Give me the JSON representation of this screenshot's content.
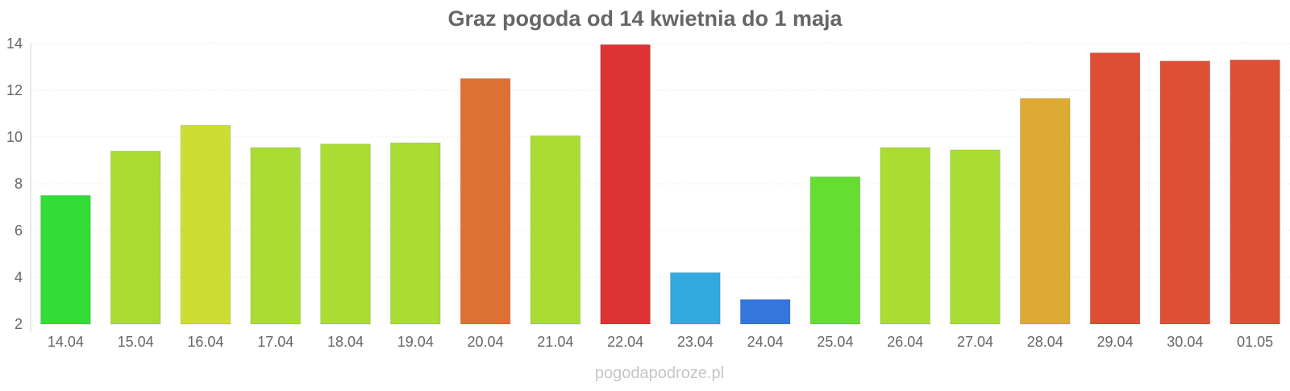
{
  "chart_data": {
    "type": "bar",
    "title": "Graz pogoda od 14 kwietnia do 1 maja",
    "xlabel": "",
    "ylabel": "",
    "categories": [
      "14.04",
      "15.04",
      "16.04",
      "17.04",
      "18.04",
      "19.04",
      "20.04",
      "21.04",
      "22.04",
      "23.04",
      "24.04",
      "25.04",
      "26.04",
      "27.04",
      "28.04",
      "29.04",
      "30.04",
      "01.05"
    ],
    "values": [
      7.5,
      9.4,
      10.5,
      9.55,
      9.7,
      9.75,
      12.5,
      10.05,
      13.95,
      4.2,
      3.05,
      8.3,
      9.55,
      9.45,
      11.65,
      13.6,
      13.25,
      13.3
    ],
    "colors": [
      "#33dd38",
      "#a9db33",
      "#cddd33",
      "#a9dd33",
      "#a9dd33",
      "#a9dd33",
      "#dd7033",
      "#a9dd33",
      "#dd3333",
      "#33a9dd",
      "#3377dd",
      "#66dd33",
      "#a9dd33",
      "#a9dd33",
      "#ddaa33",
      "#dd4e33",
      "#dd5033",
      "#dd5033"
    ],
    "ylim": [
      2,
      14
    ],
    "yticks": [
      2,
      4,
      6,
      8,
      10,
      12,
      14
    ],
    "grid": true,
    "legend": "none"
  },
  "watermark": "pogodapodroze.pl"
}
